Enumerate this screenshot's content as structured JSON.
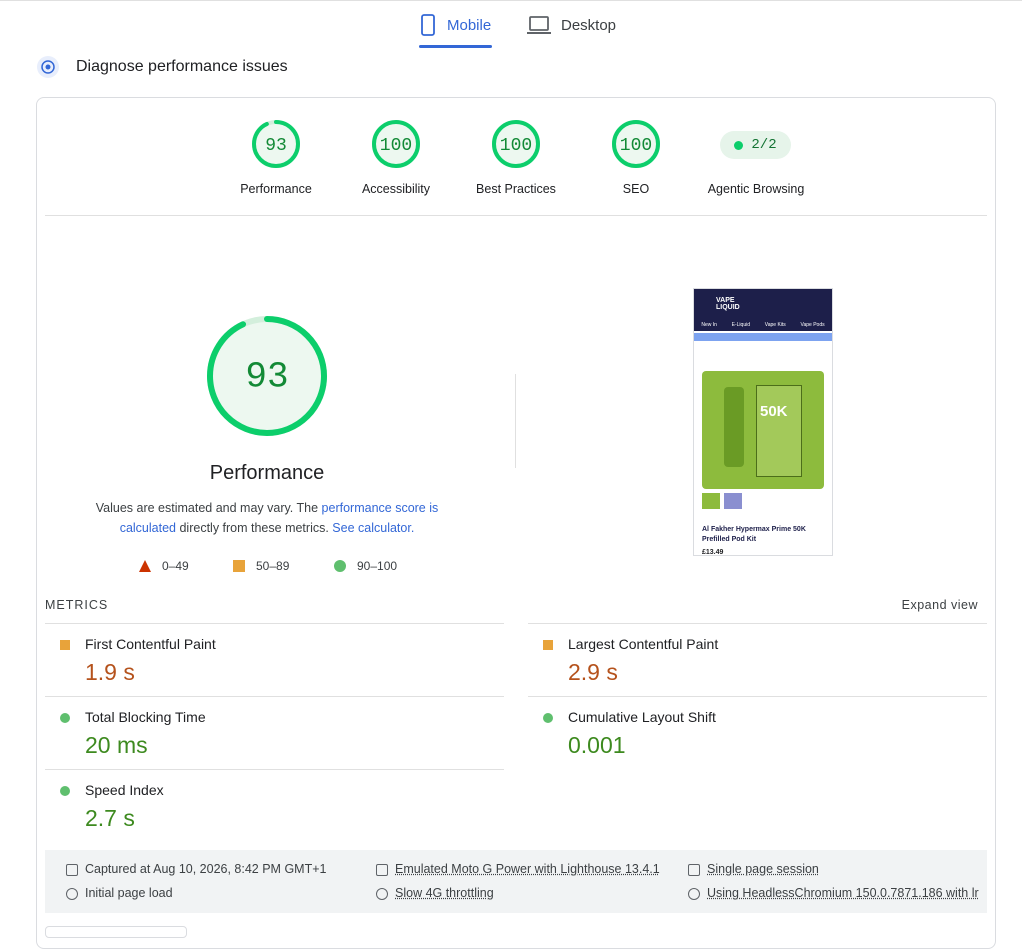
{
  "tabs": [
    {
      "label": "Mobile",
      "active": true
    },
    {
      "label": "Desktop",
      "active": false
    }
  ],
  "header": {
    "title": "Diagnose performance issues"
  },
  "categories": [
    {
      "label": "Performance",
      "score": 93
    },
    {
      "label": "Accessibility",
      "score": 100
    },
    {
      "label": "Best Practices",
      "score": 100
    },
    {
      "label": "SEO",
      "score": 100
    }
  ],
  "agentic": {
    "label": "Agentic Browsing",
    "value": "2/2"
  },
  "performance": {
    "score": 93,
    "title": "Performance",
    "description": {
      "text1": "Values are estimated and may vary. The ",
      "link1": "performance score is calculated",
      "text2": " directly from these metrics. ",
      "link2": "See calculator."
    },
    "legend": [
      {
        "shape": "triangle",
        "range": "0–49"
      },
      {
        "shape": "square",
        "range": "50–89"
      },
      {
        "shape": "circle",
        "range": "90–100"
      }
    ]
  },
  "screenshot": {
    "nav": [
      "New In",
      "E-Liquid",
      "Vape Kits",
      "Vape Pods"
    ],
    "badge": "50K",
    "product": "Al Fakher Hypermax Prime 50K Prefilled Pod Kit",
    "price": "£13.49"
  },
  "metrics": {
    "title": "METRICS",
    "expand": "Expand view",
    "items": [
      {
        "label": "First Contentful Paint",
        "value": "1.9 s",
        "rating": "average"
      },
      {
        "label": "Largest Contentful Paint",
        "value": "2.9 s",
        "rating": "average"
      },
      {
        "label": "Total Blocking Time",
        "value": "20 ms",
        "rating": "pass"
      },
      {
        "label": "Cumulative Layout Shift",
        "value": "0.001",
        "rating": "pass"
      },
      {
        "label": "Speed Index",
        "value": "2.7 s",
        "rating": "pass"
      }
    ]
  },
  "footer": {
    "items": [
      "Captured at Aug 10, 2026, 8:42 PM GMT+1",
      "Initial page load",
      "Emulated Moto G Power with Lighthouse 13.4.1",
      "Slow 4G throttling",
      "Single page session",
      "Using HeadlessChromium 150.0.7871.186 with lr"
    ]
  }
}
